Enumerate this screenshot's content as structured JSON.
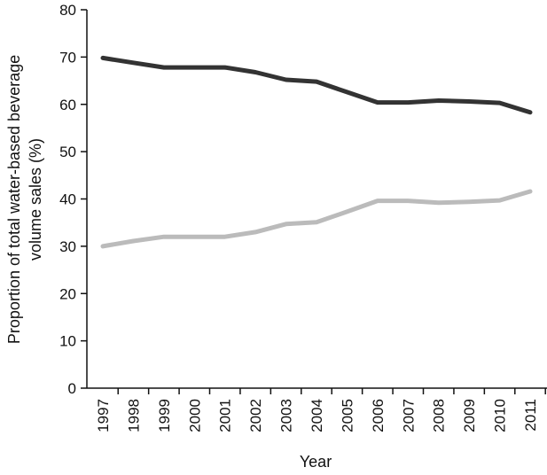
{
  "chart_data": {
    "type": "line",
    "title": "",
    "xlabel": "Year",
    "ylabel_lines": [
      "Proportion of total water-based beverage",
      "volume sales (%)"
    ],
    "categories": [
      "1997",
      "1998",
      "1999",
      "2000",
      "2001",
      "2002",
      "2003",
      "2004",
      "2005",
      "2006",
      "2007",
      "2008",
      "2009",
      "2010",
      "2011"
    ],
    "ylim": [
      0,
      80
    ],
    "yticks": [
      0,
      10,
      20,
      30,
      40,
      50,
      60,
      70,
      80
    ],
    "grid": false,
    "series": [
      {
        "color": "#333333",
        "values": [
          69.8,
          68.8,
          67.8,
          67.8,
          67.8,
          66.8,
          65.2,
          64.8,
          62.6,
          60.4,
          60.4,
          60.8,
          60.6,
          60.3,
          58.3
        ]
      },
      {
        "color": "#bbbbbb",
        "values": [
          30.0,
          31.1,
          32.0,
          32.0,
          32.0,
          33.0,
          34.7,
          35.1,
          37.3,
          39.6,
          39.6,
          39.2,
          39.4,
          39.7,
          41.6
        ]
      }
    ]
  }
}
